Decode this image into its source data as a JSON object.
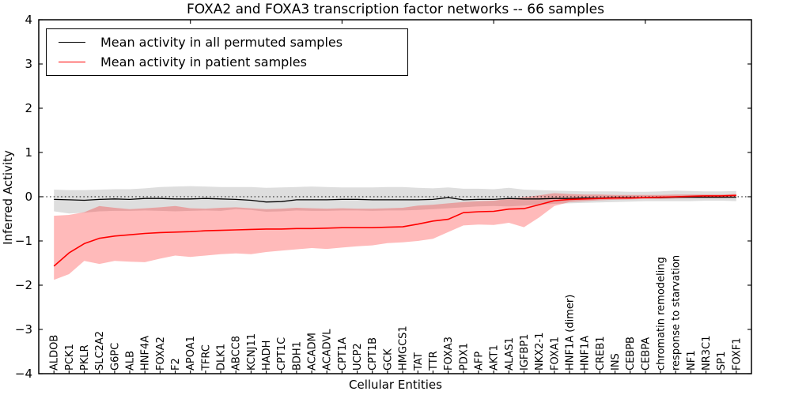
{
  "chart_data": {
    "type": "line",
    "title": "FOXA2 and FOXA3 transcription factor networks -- 66 samples",
    "xlabel": "Cellular Entities",
    "ylabel": "Inferred Activity",
    "ylim": [
      -4,
      4
    ],
    "yticks": [
      -4,
      -3,
      -2,
      -1,
      0,
      1,
      2,
      3,
      4
    ],
    "grid": false,
    "zero_line_style": "dotted",
    "legend_position": "upper-left",
    "top_tick_positions": [
      10,
      20,
      30,
      40
    ],
    "categories": [
      "ALDOB",
      "PCK1",
      "PKLR",
      "SLC2A2",
      "G6PC",
      "ALB",
      "HNF4A",
      "FOXA2",
      "F2",
      "APOA1",
      "TFRC",
      "DLK1",
      "ABCC8",
      "KCNJ11",
      "HADH",
      "CPT1C",
      "BDH1",
      "ACADM",
      "ACADVL",
      "CPT1A",
      "UCP2",
      "CPT1B",
      "GCK",
      "HMGCS1",
      "TAT",
      "TTR",
      "FOXA3",
      "PDX1",
      "AFP",
      "AKT1",
      "ALAS1",
      "IGFBP1",
      "NKX2-1",
      "FOXA1",
      "HNF1A (dimer)",
      "HNF1A",
      "CREB1",
      "INS",
      "CEBPB",
      "CEBPA",
      "chromatin remodeling",
      "response to starvation",
      "NF1",
      "NR3C1",
      "SP1",
      "FOXF1"
    ],
    "series": [
      {
        "name": "Mean activity in all permuted samples",
        "color": "#000000",
        "line_width": 1.3,
        "values": [
          -0.06,
          -0.07,
          -0.08,
          -0.06,
          -0.05,
          -0.06,
          -0.04,
          -0.04,
          -0.05,
          -0.05,
          -0.04,
          -0.05,
          -0.06,
          -0.08,
          -0.12,
          -0.11,
          -0.07,
          -0.07,
          -0.07,
          -0.06,
          -0.06,
          -0.07,
          -0.07,
          -0.07,
          -0.07,
          -0.06,
          -0.02,
          -0.07,
          -0.06,
          -0.06,
          -0.04,
          -0.05,
          -0.05,
          -0.04,
          -0.04,
          -0.03,
          -0.03,
          -0.02,
          -0.02,
          -0.02,
          -0.02,
          -0.01,
          -0.01,
          -0.01,
          -0.01,
          -0.01
        ],
        "band_upper": [
          0.16,
          0.15,
          0.15,
          0.16,
          0.17,
          0.17,
          0.19,
          0.22,
          0.23,
          0.24,
          0.23,
          0.22,
          0.22,
          0.22,
          0.2,
          0.21,
          0.22,
          0.23,
          0.22,
          0.21,
          0.21,
          0.21,
          0.22,
          0.22,
          0.2,
          0.19,
          0.21,
          0.18,
          0.18,
          0.17,
          0.2,
          0.16,
          0.15,
          0.14,
          0.13,
          0.12,
          0.12,
          0.12,
          0.11,
          0.11,
          0.12,
          0.14,
          0.13,
          0.12,
          0.12,
          0.13
        ],
        "band_lower": [
          -0.33,
          -0.38,
          -0.36,
          -0.33,
          -0.32,
          -0.32,
          -0.31,
          -0.32,
          -0.33,
          -0.32,
          -0.31,
          -0.32,
          -0.28,
          -0.3,
          -0.34,
          -0.33,
          -0.31,
          -0.32,
          -0.32,
          -0.31,
          -0.31,
          -0.32,
          -0.31,
          -0.31,
          -0.3,
          -0.28,
          -0.26,
          -0.24,
          -0.22,
          -0.21,
          -0.22,
          -0.2,
          -0.18,
          -0.16,
          -0.15,
          -0.14,
          -0.13,
          -0.12,
          -0.11,
          -0.1,
          -0.1,
          -0.1,
          -0.1,
          -0.09,
          -0.09,
          -0.1
        ],
        "band_color": "#000000",
        "band_opacity": 0.13
      },
      {
        "name": "Mean activity in patient samples",
        "color": "#ff0000",
        "line_width": 1.6,
        "values": [
          -1.57,
          -1.27,
          -1.06,
          -0.94,
          -0.89,
          -0.86,
          -0.83,
          -0.81,
          -0.8,
          -0.79,
          -0.77,
          -0.76,
          -0.75,
          -0.74,
          -0.73,
          -0.73,
          -0.72,
          -0.72,
          -0.71,
          -0.7,
          -0.7,
          -0.7,
          -0.69,
          -0.68,
          -0.62,
          -0.55,
          -0.51,
          -0.36,
          -0.34,
          -0.33,
          -0.28,
          -0.27,
          -0.18,
          -0.09,
          -0.06,
          -0.05,
          -0.04,
          -0.03,
          -0.03,
          -0.02,
          -0.01,
          0,
          0.01,
          0.02,
          0.02,
          0.03
        ],
        "band_upper": [
          -0.43,
          -0.41,
          -0.35,
          -0.21,
          -0.25,
          -0.28,
          -0.26,
          -0.24,
          -0.21,
          -0.26,
          -0.27,
          -0.25,
          -0.24,
          -0.26,
          -0.28,
          -0.27,
          -0.25,
          -0.26,
          -0.27,
          -0.26,
          -0.27,
          -0.27,
          -0.26,
          -0.25,
          -0.2,
          -0.18,
          -0.15,
          -0.12,
          -0.1,
          -0.09,
          -0.05,
          -0.01,
          0.03,
          0.08,
          0.06,
          0.05,
          0.05,
          0.04,
          0.04,
          0.04,
          0.04,
          0.05,
          0.05,
          0.05,
          0.05,
          0.06
        ],
        "band_lower": [
          -1.88,
          -1.75,
          -1.45,
          -1.52,
          -1.45,
          -1.47,
          -1.48,
          -1.4,
          -1.33,
          -1.36,
          -1.33,
          -1.3,
          -1.28,
          -1.3,
          -1.25,
          -1.22,
          -1.19,
          -1.16,
          -1.18,
          -1.15,
          -1.12,
          -1.1,
          -1.05,
          -1.03,
          -1.0,
          -0.95,
          -0.8,
          -0.65,
          -0.63,
          -0.64,
          -0.59,
          -0.69,
          -0.47,
          -0.21,
          -0.12,
          -0.1,
          -0.08,
          -0.07,
          -0.06,
          -0.05,
          -0.05,
          -0.04,
          -0.03,
          -0.03,
          -0.03,
          -0.02
        ],
        "band_color": "#ff0000",
        "band_opacity": 0.27
      }
    ]
  },
  "colors": {
    "background": "#ffffff",
    "spine": "#000000",
    "zero_line": "#000000",
    "permuted_line": "#000000",
    "patient_line": "#ff0000"
  }
}
